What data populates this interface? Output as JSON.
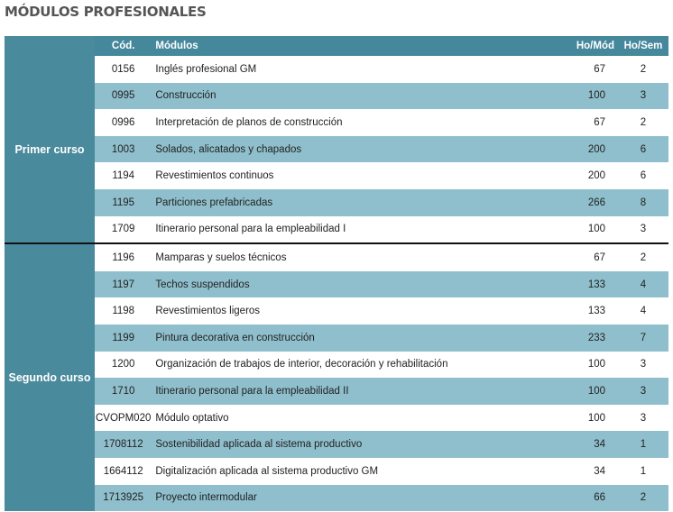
{
  "title": "MÓDULOS PROFESIONALES",
  "headers": {
    "cod": "Cód.",
    "modulos": "Módulos",
    "ho_mod": "Ho/Mód",
    "ho_sem": "Ho/Sem"
  },
  "colors": {
    "header": "#45879b",
    "group": "#4a8a9d",
    "alt_row": "#8fbfcc"
  },
  "groups": [
    {
      "label": "Primer curso",
      "rows": [
        {
          "cod": "0156",
          "modulo": "Inglés profesional GM",
          "ho_mod": "67",
          "ho_sem": "2"
        },
        {
          "cod": "0995",
          "modulo": "Construcción",
          "ho_mod": "100",
          "ho_sem": "3"
        },
        {
          "cod": "0996",
          "modulo": "Interpretación de planos de construcción",
          "ho_mod": "67",
          "ho_sem": "2"
        },
        {
          "cod": "1003",
          "modulo": "Solados, alicatados y chapados",
          "ho_mod": "200",
          "ho_sem": "6"
        },
        {
          "cod": "1194",
          "modulo": "Revestimientos continuos",
          "ho_mod": "200",
          "ho_sem": "6"
        },
        {
          "cod": "1195",
          "modulo": "Particiones prefabricadas",
          "ho_mod": "266",
          "ho_sem": "8"
        },
        {
          "cod": "1709",
          "modulo": "Itinerario personal para la empleabilidad I",
          "ho_mod": "100",
          "ho_sem": "3"
        }
      ]
    },
    {
      "label": "Segundo curso",
      "rows": [
        {
          "cod": "1196",
          "modulo": "Mamparas y suelos técnicos",
          "ho_mod": "67",
          "ho_sem": "2"
        },
        {
          "cod": "1197",
          "modulo": "Techos suspendidos",
          "ho_mod": "133",
          "ho_sem": "4"
        },
        {
          "cod": "1198",
          "modulo": "Revestimientos ligeros",
          "ho_mod": "133",
          "ho_sem": "4"
        },
        {
          "cod": "1199",
          "modulo": "Pintura decorativa en construcción",
          "ho_mod": "233",
          "ho_sem": "7"
        },
        {
          "cod": "1200",
          "modulo": "Organización de trabajos de interior, decoración y rehabilitación",
          "ho_mod": "100",
          "ho_sem": "3"
        },
        {
          "cod": "1710",
          "modulo": "Itinerario personal para la empleabilidad II",
          "ho_mod": "100",
          "ho_sem": "3"
        },
        {
          "cod": "CVOPM020",
          "modulo": "Módulo optativo",
          "ho_mod": "100",
          "ho_sem": "3"
        },
        {
          "cod": "1708112",
          "modulo": "Sostenibilidad aplicada al sistema productivo",
          "ho_mod": "34",
          "ho_sem": "1"
        },
        {
          "cod": "1664112",
          "modulo": "Digitalización aplicada al sistema productivo GM",
          "ho_mod": "34",
          "ho_sem": "1"
        },
        {
          "cod": "1713925",
          "modulo": "Proyecto intermodular",
          "ho_mod": "66",
          "ho_sem": "2"
        }
      ]
    }
  ]
}
